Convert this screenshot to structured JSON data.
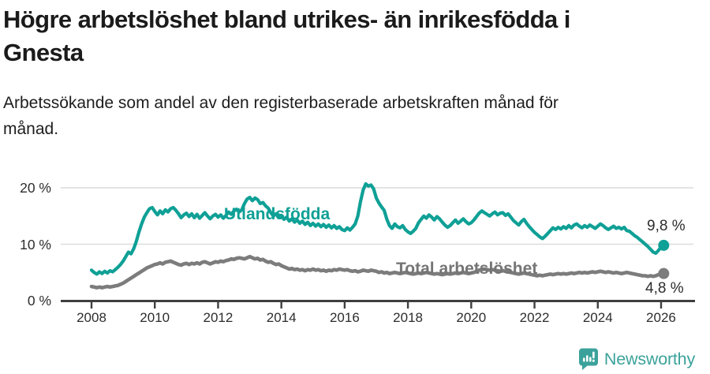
{
  "header": {
    "title": "Högre arbetslöshet bland utrikes- än inrikesfödda i Gnesta",
    "title_lines": [
      "Högre arbetslöshet bland utrikes- än inrikesfödda i",
      "Gnesta"
    ],
    "subtitle": "Arbetssökande som andel av den registerbaserade arbetskraften månad för månad.",
    "subtitle_lines": [
      "Arbetssökande som andel av den registerbaserade arbetskraften månad för",
      "månad."
    ]
  },
  "footer": {
    "brand": "Newsworthy",
    "brand_color": "#3ba29b"
  },
  "colors": {
    "utlandsfodda": "#0fa096",
    "total": "#7c7c7c",
    "axis": "#3f3f3f",
    "grid": "#dcdcdc",
    "tick_text": "#2d2d2d"
  },
  "chart_data": {
    "type": "line",
    "title": "Högre arbetslöshet bland utrikes- än inrikesfödda i Gnesta",
    "subtitle": "Arbetssökande som andel av den registerbaserade arbetskraften månad för månad.",
    "xlabel": "",
    "ylabel": "",
    "x_unit": "year (monthly values)",
    "x_start": 2008.0,
    "x_step": 0.0833,
    "xlim": [
      2007.0,
      2027.0
    ],
    "ylim": [
      0,
      22
    ],
    "grid": "horizontal",
    "x_ticks": [
      2008,
      2010,
      2012,
      2014,
      2016,
      2018,
      2020,
      2022,
      2024,
      2026
    ],
    "x_tick_labels": [
      "2008",
      "2010",
      "2012",
      "2014",
      "2016",
      "2018",
      "2020",
      "2022",
      "2024",
      "2026"
    ],
    "y_ticks": [
      0,
      10,
      20
    ],
    "y_tick_labels": [
      "0 %",
      "10 %",
      "20 %"
    ],
    "legend_position": "inline-labels",
    "series": [
      {
        "name": "Utlandsfödda",
        "color": "#0fa096",
        "end_label": "9,8 %",
        "end_value": 9.8,
        "values": [
          5.4,
          5.0,
          4.7,
          5.1,
          4.8,
          5.2,
          4.9,
          5.3,
          5.1,
          5.5,
          5.9,
          6.4,
          7.0,
          7.8,
          8.6,
          8.3,
          9.2,
          10.5,
          12.2,
          13.6,
          14.8,
          15.6,
          16.3,
          16.5,
          15.8,
          15.2,
          15.9,
          15.4,
          16.1,
          15.7,
          16.3,
          16.5,
          16.0,
          15.4,
          14.7,
          15.2,
          15.5,
          14.9,
          15.4,
          14.7,
          15.3,
          14.6,
          15.1,
          15.6,
          15.0,
          14.5,
          15.0,
          15.3,
          14.8,
          15.2,
          14.6,
          15.1,
          15.7,
          15.3,
          15.9,
          16.2,
          15.7,
          16.1,
          17.2,
          18.0,
          18.3,
          17.7,
          18.2,
          17.9,
          17.2,
          17.4,
          16.8,
          16.4,
          15.6,
          15.0,
          15.4,
          14.7,
          15.1,
          14.4,
          14.8,
          14.1,
          14.5,
          13.9,
          14.3,
          13.7,
          14.1,
          13.5,
          13.9,
          13.3,
          13.7,
          13.2,
          13.6,
          13.1,
          13.5,
          13.0,
          13.4,
          12.9,
          13.3,
          12.8,
          13.1,
          12.6,
          12.4,
          12.9,
          12.5,
          13.0,
          13.6,
          15.0,
          17.5,
          19.6,
          20.7,
          20.3,
          20.5,
          19.8,
          18.2,
          17.3,
          16.6,
          16.0,
          14.4,
          13.3,
          12.8,
          13.6,
          13.1,
          12.9,
          13.3,
          12.6,
          12.2,
          11.9,
          12.3,
          12.8,
          13.8,
          14.4,
          15.0,
          14.6,
          15.2,
          14.8,
          14.3,
          14.9,
          14.5,
          13.9,
          13.4,
          13.0,
          13.3,
          13.8,
          14.3,
          13.7,
          14.1,
          14.5,
          14.0,
          13.6,
          13.8,
          14.3,
          14.9,
          15.5,
          15.9,
          15.6,
          15.3,
          15.0,
          15.4,
          15.7,
          15.2,
          15.5,
          15.6,
          15.1,
          15.4,
          14.8,
          14.2,
          13.8,
          13.4,
          14.0,
          14.4,
          13.7,
          13.1,
          12.6,
          12.1,
          11.7,
          11.3,
          11.0,
          11.4,
          11.9,
          12.4,
          12.9,
          12.6,
          13.0,
          12.7,
          13.1,
          12.8,
          13.3,
          12.9,
          13.4,
          13.6,
          13.2,
          12.9,
          13.3,
          13.0,
          13.4,
          13.1,
          12.8,
          13.2,
          13.6,
          13.3,
          12.9,
          12.6,
          12.9,
          13.2,
          12.8,
          13.0,
          12.7,
          13.0,
          12.4,
          12.3,
          11.9,
          11.5,
          11.2,
          10.8,
          10.4,
          10.0,
          9.6,
          9.1,
          8.6,
          8.4,
          8.9,
          9.5,
          9.8
        ]
      },
      {
        "name": "Total arbetslöshet",
        "color": "#7c7c7c",
        "end_label": "4,8 %",
        "end_value": 4.8,
        "values": [
          2.5,
          2.4,
          2.3,
          2.4,
          2.3,
          2.4,
          2.5,
          2.4,
          2.5,
          2.6,
          2.7,
          2.9,
          3.1,
          3.4,
          3.7,
          4.0,
          4.3,
          4.6,
          4.9,
          5.2,
          5.5,
          5.8,
          6.0,
          6.2,
          6.4,
          6.5,
          6.7,
          6.5,
          6.8,
          6.9,
          7.0,
          6.8,
          6.6,
          6.4,
          6.3,
          6.5,
          6.6,
          6.4,
          6.6,
          6.5,
          6.7,
          6.5,
          6.8,
          6.9,
          6.7,
          6.5,
          6.7,
          6.9,
          6.8,
          7.0,
          6.9,
          7.1,
          7.2,
          7.4,
          7.3,
          7.5,
          7.6,
          7.5,
          7.4,
          7.6,
          7.8,
          7.6,
          7.4,
          7.5,
          7.2,
          7.3,
          7.0,
          6.8,
          6.9,
          6.6,
          6.4,
          6.5,
          6.2,
          6.0,
          5.8,
          5.6,
          5.7,
          5.5,
          5.6,
          5.4,
          5.5,
          5.3,
          5.5,
          5.4,
          5.6,
          5.4,
          5.5,
          5.3,
          5.4,
          5.2,
          5.4,
          5.3,
          5.5,
          5.4,
          5.6,
          5.5,
          5.4,
          5.5,
          5.3,
          5.2,
          5.3,
          5.1,
          5.2,
          5.4,
          5.3,
          5.2,
          5.4,
          5.3,
          5.2,
          5.0,
          5.1,
          4.9,
          5.0,
          4.8,
          4.9,
          5.0,
          4.9,
          4.8,
          4.9,
          5.0,
          4.9,
          4.8,
          4.7,
          4.8,
          4.9,
          4.8,
          4.9,
          5.0,
          4.9,
          4.8,
          4.7,
          4.8,
          4.7,
          4.6,
          4.7,
          4.8,
          4.7,
          4.8,
          4.9,
          4.8,
          4.9,
          5.0,
          4.9,
          4.8,
          4.9,
          5.0,
          5.2,
          5.4,
          5.5,
          5.6,
          5.5,
          5.4,
          5.5,
          5.4,
          5.3,
          5.2,
          5.3,
          5.2,
          5.1,
          5.0,
          4.9,
          4.8,
          4.7,
          4.8,
          4.9,
          4.8,
          4.7,
          4.6,
          4.5,
          4.4,
          4.5,
          4.4,
          4.5,
          4.6,
          4.7,
          4.6,
          4.7,
          4.8,
          4.7,
          4.8,
          4.7,
          4.8,
          4.9,
          4.8,
          4.9,
          5.0,
          4.9,
          5.0,
          4.9,
          5.0,
          5.1,
          5.0,
          5.1,
          5.2,
          5.1,
          5.0,
          5.1,
          5.0,
          4.9,
          5.0,
          4.9,
          4.8,
          4.9,
          5.0,
          4.9,
          4.8,
          4.7,
          4.6,
          4.5,
          4.4,
          4.4,
          4.3,
          4.4,
          4.3,
          4.4,
          4.6,
          4.7,
          4.8
        ]
      }
    ]
  }
}
